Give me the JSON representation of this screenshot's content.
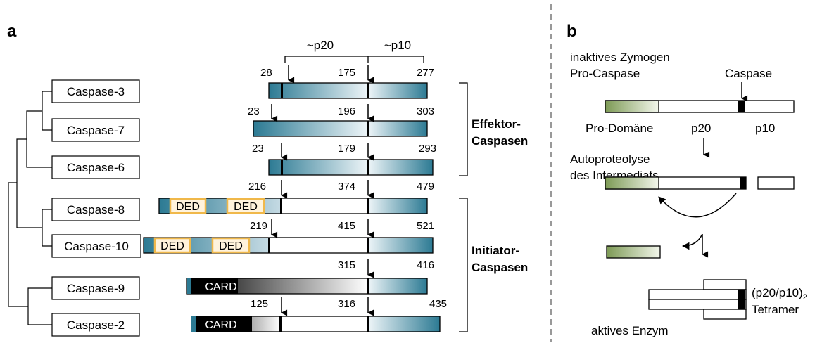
{
  "panel_a": {
    "label": "a",
    "subunit_labels": {
      "large": "~p20",
      "small": "~p10"
    },
    "caspases": [
      {
        "name": "Caspase-3",
        "start": "28",
        "mid": "175",
        "end": "277"
      },
      {
        "name": "Caspase-7",
        "start": "23",
        "mid": "196",
        "end": "303"
      },
      {
        "name": "Caspase-6",
        "start": "23",
        "mid": "179",
        "end": "293"
      },
      {
        "name": "Caspase-8",
        "start": "216",
        "mid": "374",
        "end": "479",
        "domains": [
          "DED",
          "DED"
        ]
      },
      {
        "name": "Caspase-10",
        "start": "219",
        "mid": "415",
        "end": "521",
        "domains": [
          "DED",
          "DED"
        ]
      },
      {
        "name": "Caspase-9",
        "start": "",
        "mid": "315",
        "end": "416",
        "domains": [
          "CARD"
        ]
      },
      {
        "name": "Caspase-2",
        "start": "125",
        "mid": "316",
        "end": "435",
        "domains": [
          "CARD"
        ]
      }
    ],
    "group_labels": {
      "effector": [
        "Effektor-",
        "Caspasen"
      ],
      "initiator": [
        "Initiator-",
        "Caspasen"
      ]
    }
  },
  "panel_b": {
    "label": "b",
    "zymogen": [
      "inaktives Zymogen",
      "Pro-Caspase"
    ],
    "caspase": "Caspase",
    "pro_domain": "Pro-Domäne",
    "p20": "p20",
    "p10": "p10",
    "autoproteolysis": [
      "Autoproteolyse",
      "des Intermediats"
    ],
    "tetramer_prefix": "(p20/p10)",
    "tetramer_sub": "2",
    "tetramer": "Tetramer",
    "active": "aktives Enzym"
  },
  "colors": {
    "teal": "#2c7a93",
    "teal_light": "#e9f2f6",
    "ded": "#f0b84a",
    "card": "#000000",
    "green": "#8fa866",
    "divider": "#999999"
  }
}
